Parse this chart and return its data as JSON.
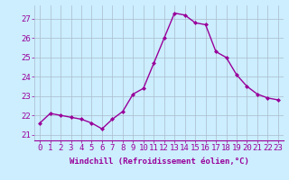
{
  "x": [
    0,
    1,
    2,
    3,
    4,
    5,
    6,
    7,
    8,
    9,
    10,
    11,
    12,
    13,
    14,
    15,
    16,
    17,
    18,
    19,
    20,
    21,
    22,
    23
  ],
  "y": [
    21.6,
    22.1,
    22.0,
    21.9,
    21.8,
    21.6,
    21.3,
    21.8,
    22.2,
    23.1,
    23.4,
    24.7,
    26.0,
    27.3,
    27.2,
    26.8,
    26.7,
    25.3,
    25.0,
    24.1,
    23.5,
    23.1,
    22.9,
    22.8
  ],
  "line_color": "#990099",
  "marker": "D",
  "marker_size": 2.0,
  "bg_color": "#cceeff",
  "grid_color": "#aabbcc",
  "xlabel": "Windchill (Refroidissement éolien,°C)",
  "xlabel_color": "#990099",
  "tick_color": "#990099",
  "ylabel_ticks": [
    21,
    22,
    23,
    24,
    25,
    26,
    27
  ],
  "xtick_labels": [
    "0",
    "1",
    "2",
    "3",
    "4",
    "5",
    "6",
    "7",
    "8",
    "9",
    "10",
    "11",
    "12",
    "13",
    "14",
    "15",
    "16",
    "17",
    "18",
    "19",
    "20",
    "21",
    "22",
    "23"
  ],
  "ylim": [
    20.7,
    27.7
  ],
  "xlim": [
    -0.5,
    23.5
  ],
  "font_size": 6.5,
  "line_width": 1.0
}
